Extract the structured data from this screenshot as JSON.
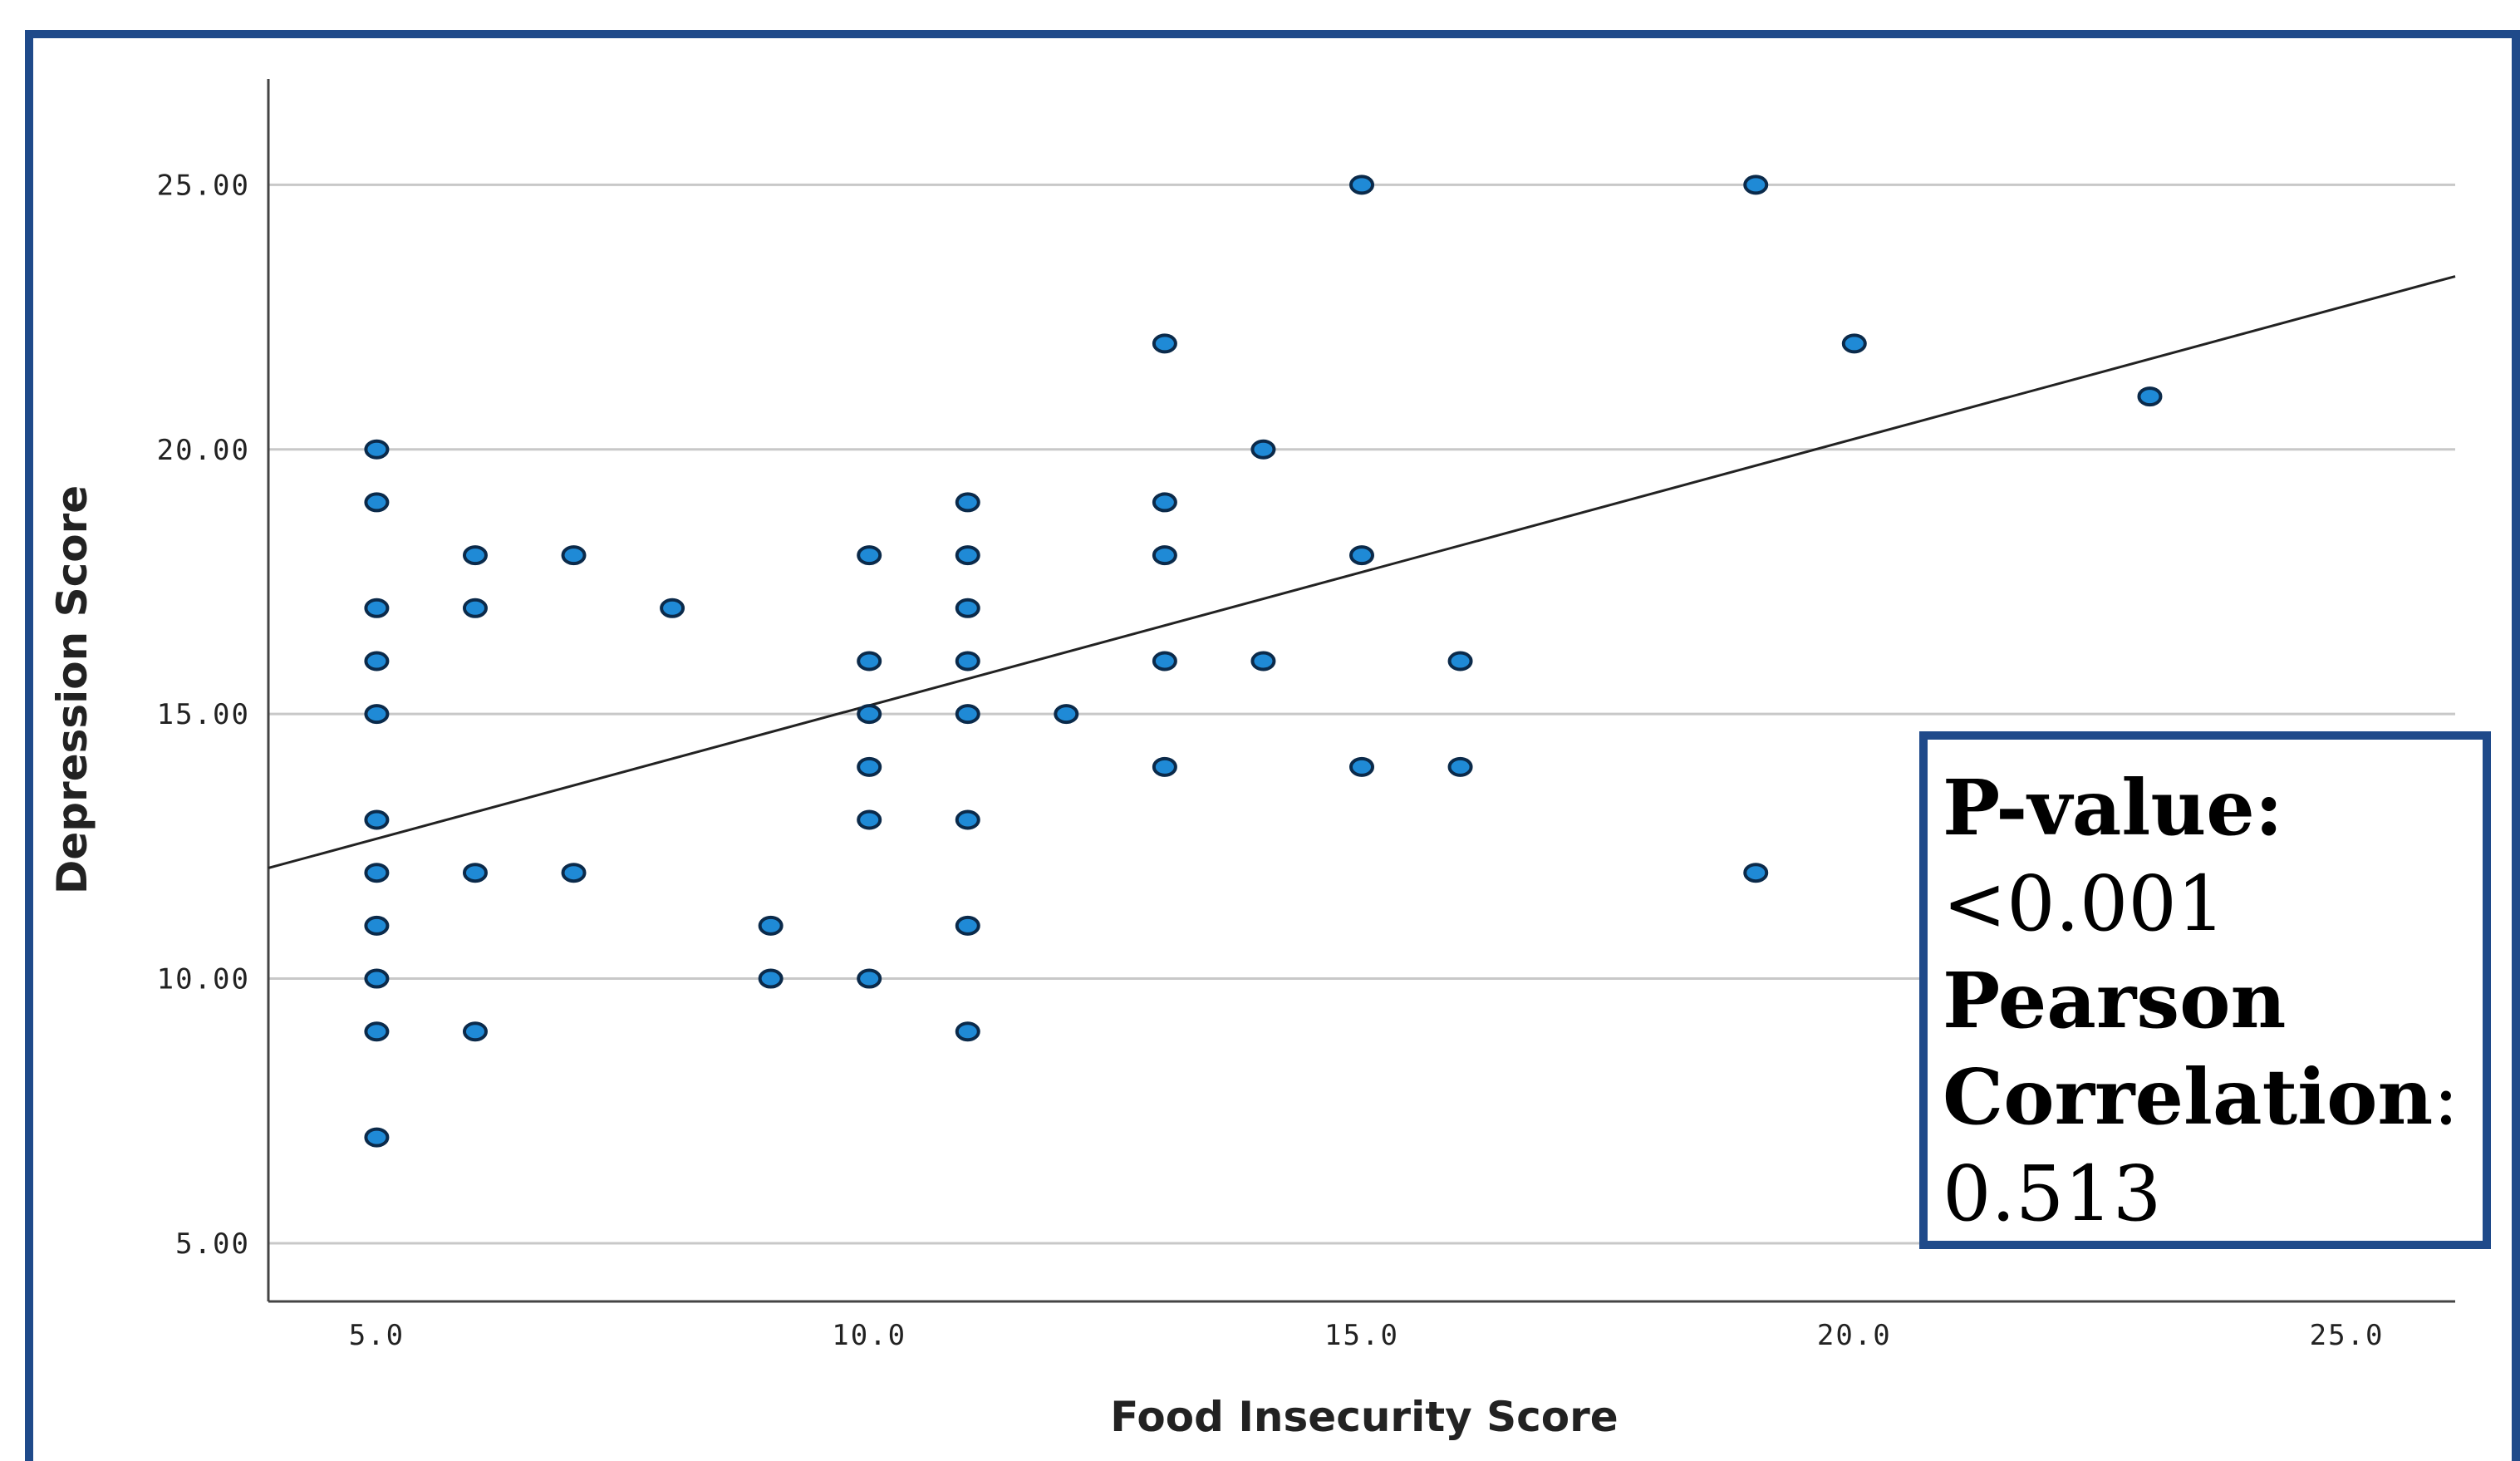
{
  "chart_data": {
    "type": "scatter",
    "title": "",
    "xlabel": "Food Insecurity Score",
    "ylabel": "Depression Score",
    "xlim": [
      3.9,
      26.1
    ],
    "ylim": [
      3.9,
      27.0
    ],
    "x_ticks": [
      "5.0",
      "10.0",
      "15.0",
      "20.0",
      "25.0"
    ],
    "y_ticks": [
      "5.00",
      "10.00",
      "15.00",
      "20.00",
      "25.00"
    ],
    "grid": "horizontal",
    "point_color": "#1f8ad6",
    "points": [
      [
        5,
        20
      ],
      [
        5,
        19
      ],
      [
        5,
        17
      ],
      [
        5,
        16
      ],
      [
        5,
        15
      ],
      [
        5,
        13
      ],
      [
        5,
        12
      ],
      [
        5,
        11
      ],
      [
        5,
        10
      ],
      [
        5,
        9
      ],
      [
        5,
        7
      ],
      [
        6,
        18
      ],
      [
        6,
        17
      ],
      [
        6,
        12
      ],
      [
        6,
        9
      ],
      [
        7,
        18
      ],
      [
        7,
        12
      ],
      [
        8,
        17
      ],
      [
        9,
        11
      ],
      [
        9,
        10
      ],
      [
        10,
        18
      ],
      [
        10,
        16
      ],
      [
        10,
        15
      ],
      [
        10,
        14
      ],
      [
        10,
        13
      ],
      [
        10,
        10
      ],
      [
        11,
        19
      ],
      [
        11,
        18
      ],
      [
        11,
        17
      ],
      [
        11,
        16
      ],
      [
        11,
        15
      ],
      [
        11,
        13
      ],
      [
        11,
        11
      ],
      [
        11,
        9
      ],
      [
        12,
        15
      ],
      [
        13,
        22
      ],
      [
        13,
        19
      ],
      [
        13,
        18
      ],
      [
        13,
        16
      ],
      [
        13,
        14
      ],
      [
        14,
        20
      ],
      [
        14,
        16
      ],
      [
        15,
        25
      ],
      [
        15,
        18
      ],
      [
        15,
        14
      ],
      [
        16,
        16
      ],
      [
        16,
        14
      ],
      [
        19,
        25
      ],
      [
        19,
        12
      ],
      [
        20,
        22
      ],
      [
        23,
        21
      ]
    ],
    "fit_line": {
      "x": [
        3.9,
        26.1
      ],
      "y": [
        12.09,
        23.27
      ]
    }
  },
  "stats": {
    "p_label": "P-value:",
    "p_value": "<0.001",
    "corr_label_1": "Pearson",
    "corr_label_2": "Correlation",
    "corr_colon": ":",
    "corr_value": "0.513"
  }
}
